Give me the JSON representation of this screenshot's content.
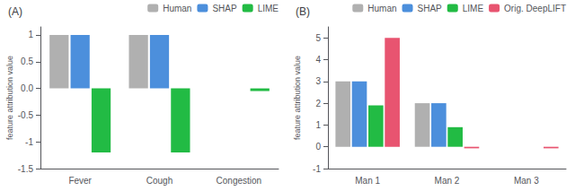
{
  "chart_data": [
    {
      "type": "bar",
      "title": "(A)",
      "categories": [
        "Fever",
        "Cough",
        "Congestion"
      ],
      "series": [
        {
          "name": "Human",
          "color": "#b0b0b0",
          "values": [
            1.0,
            1.0,
            0.0
          ]
        },
        {
          "name": "SHAP",
          "color": "#4c8fdc",
          "values": [
            1.0,
            1.0,
            0.0
          ]
        },
        {
          "name": "LIME",
          "color": "#22bb44",
          "values": [
            -1.2,
            -1.2,
            -0.05
          ]
        }
      ],
      "ylabel": "feature attribution value",
      "ylim": [
        -1.5,
        1.15
      ],
      "yticks": [
        -1.5,
        -1,
        -0.5,
        {
          "value": 0,
          "label": "0.0"
        },
        0.5,
        1
      ],
      "grid": false,
      "legend": "upper right"
    },
    {
      "type": "bar",
      "title": "(B)",
      "categories": [
        "Man 1",
        "Man 2",
        "Man 3"
      ],
      "series": [
        {
          "name": "Human",
          "color": "#b0b0b0",
          "values": [
            3.0,
            2.0,
            0.0
          ]
        },
        {
          "name": "SHAP",
          "color": "#4c8fdc",
          "values": [
            3.0,
            2.0,
            0.0
          ]
        },
        {
          "name": "LIME",
          "color": "#22bb44",
          "values": [
            1.9,
            0.9,
            0.0
          ]
        },
        {
          "name": "Orig. DeepLIFT",
          "color": "#e85470",
          "values": [
            5.0,
            -0.07,
            -0.07
          ]
        }
      ],
      "ylabel": "feature attribution value",
      "ylim": [
        -1.0,
        5.5
      ],
      "yticks": [
        -1,
        0,
        1,
        2,
        3,
        4,
        5
      ],
      "grid": false,
      "legend": "upper right"
    }
  ]
}
